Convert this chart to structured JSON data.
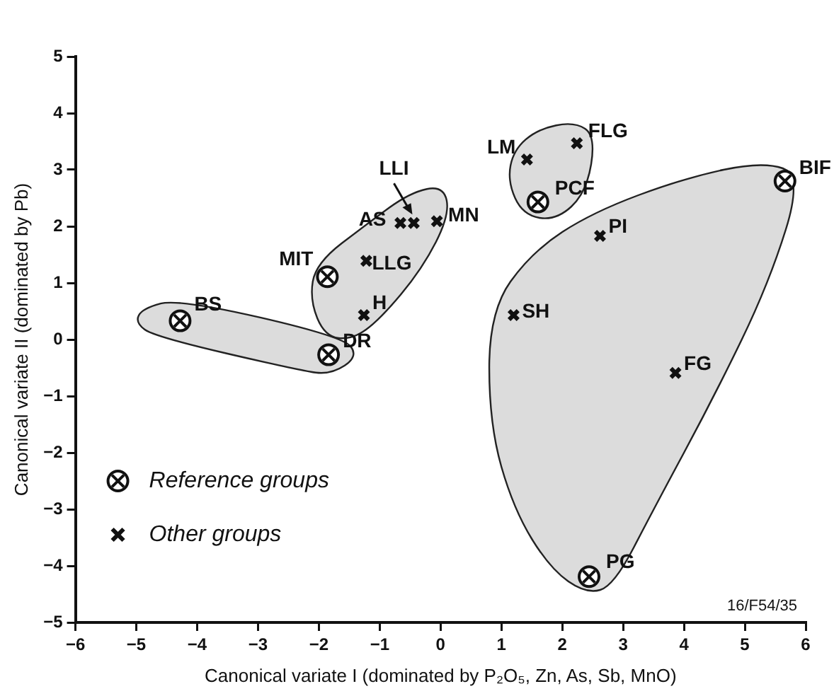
{
  "chart_data": {
    "type": "scatter",
    "xlabel": "Canonical variate I (dominated by P₂O₅, Zn, As, Sb, MnO)",
    "ylabel": "Canonical variate II (dominated by Pb)",
    "series": [
      {
        "name": "Reference groups",
        "color": "#111111",
        "marker": "circle",
        "x": [
          -4.28,
          -1.84,
          -1.86,
          1.6,
          5.66,
          2.44
        ],
        "values": [
          0.33,
          -0.27,
          1.11,
          2.43,
          2.8,
          -4.19
        ]
      },
      {
        "name": "Other groups",
        "color": "#111111",
        "marker": "cross",
        "x": [
          -0.44,
          -0.66,
          -0.06,
          -1.22,
          -1.26,
          1.42,
          2.24,
          2.62,
          1.2,
          3.86
        ],
        "values": [
          2.06,
          2.06,
          2.09,
          1.39,
          0.43,
          3.18,
          3.47,
          1.83,
          0.43,
          -0.59
        ]
      }
    ],
    "xlim": [
      -6,
      6
    ],
    "xticks": [
      -6,
      -5,
      -4,
      -3,
      -2,
      -1,
      0,
      1,
      2,
      3,
      4,
      5,
      6
    ],
    "ylim": [
      -5,
      5
    ],
    "yticks": [
      -5,
      -4,
      -3,
      -2,
      -1,
      0,
      1,
      2,
      3,
      4,
      5
    ],
    "grid": false,
    "legend": "bottom left",
    "annotations": [
      {
        "text": "BS",
        "x": -4.28,
        "y": 0.33
      },
      {
        "text": "DR",
        "x": -1.84,
        "y": -0.27
      },
      {
        "text": "MIT",
        "x": -1.86,
        "y": 1.11
      },
      {
        "text": "PCF",
        "x": 1.6,
        "y": 2.43
      },
      {
        "text": "BIF",
        "x": 5.66,
        "y": 2.8
      },
      {
        "text": "PG",
        "x": 2.44,
        "y": -4.19
      },
      {
        "text": "LLI",
        "x": -0.44,
        "y": 2.06
      },
      {
        "text": "AS",
        "x": -0.66,
        "y": 2.06
      },
      {
        "text": "MN",
        "x": -0.06,
        "y": 2.09
      },
      {
        "text": "LLG",
        "x": -1.22,
        "y": 1.39
      },
      {
        "text": "H",
        "x": -1.26,
        "y": 0.43
      },
      {
        "text": "LM",
        "x": 1.42,
        "y": 3.18
      },
      {
        "text": "FLG",
        "x": 2.24,
        "y": 3.47
      },
      {
        "text": "PI",
        "x": 2.62,
        "y": 1.83
      },
      {
        "text": "SH",
        "x": 1.2,
        "y": 0.43
      },
      {
        "text": "FG",
        "x": 3.86,
        "y": -0.59
      },
      "16/F54/35"
    ]
  }
}
